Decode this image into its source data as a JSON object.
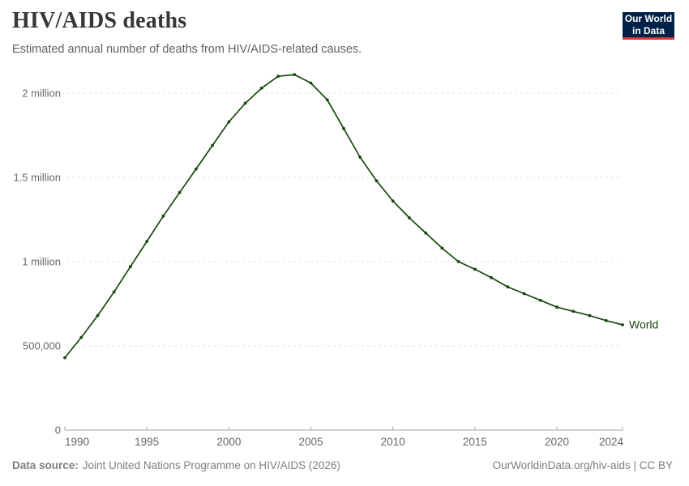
{
  "header": {
    "title": "HIV/AIDS deaths",
    "subtitle": "Estimated annual number of deaths from HIV/AIDS-related causes.",
    "logo": {
      "line1": "Our World",
      "line2": "in Data"
    }
  },
  "footer": {
    "source_label": "Data source:",
    "source_text": "Joint United Nations Programme on HIV/AIDS (2026)",
    "right_text": "OurWorldinData.org/hiv-aids | CC BY"
  },
  "colors": {
    "series_green": "#18470f",
    "logo_background": "#002147",
    "logo_accent_red": "#d93a34",
    "axis_line": "#a3a3a3",
    "grid_line": "#e0e0e0",
    "tick_label": "#666666"
  },
  "chart_data": {
    "type": "line",
    "title": "HIV/AIDS deaths",
    "subtitle": "Estimated annual number of deaths from HIV/AIDS-related causes.",
    "xlabel": "",
    "ylabel": "",
    "grid": "horizontal-dashed",
    "legend_position": "end-of-line-label",
    "xlim": [
      1990,
      2024
    ],
    "ylim": [
      0,
      2000000
    ],
    "x": [
      1990,
      1991,
      1992,
      1993,
      1994,
      1995,
      1996,
      1997,
      1998,
      1999,
      2000,
      2001,
      2002,
      2003,
      2004,
      2005,
      2006,
      2007,
      2008,
      2009,
      2010,
      2011,
      2012,
      2013,
      2014,
      2015,
      2016,
      2017,
      2018,
      2019,
      2020,
      2021,
      2022,
      2023,
      2024
    ],
    "series": [
      {
        "name": "World",
        "color": "#18470f",
        "values": [
          430000,
          550000,
          680000,
          820000,
          970000,
          1120000,
          1270000,
          1410000,
          1550000,
          1690000,
          1830000,
          1940000,
          2030000,
          2100000,
          2110000,
          2060000,
          1960000,
          1790000,
          1620000,
          1480000,
          1360000,
          1260000,
          1170000,
          1080000,
          1000000,
          955000,
          905000,
          850000,
          810000,
          770000,
          730000,
          705000,
          680000,
          650000,
          625000
        ]
      }
    ],
    "x_ticks": [
      1990,
      1995,
      2000,
      2005,
      2010,
      2015,
      2020,
      2024
    ],
    "y_ticks": [
      {
        "value": 0,
        "label": "0"
      },
      {
        "value": 500000,
        "label": "500,000"
      },
      {
        "value": 1000000,
        "label": "1 million"
      },
      {
        "value": 1500000,
        "label": "1.5 million"
      },
      {
        "value": 2000000,
        "label": "2 million"
      }
    ]
  }
}
